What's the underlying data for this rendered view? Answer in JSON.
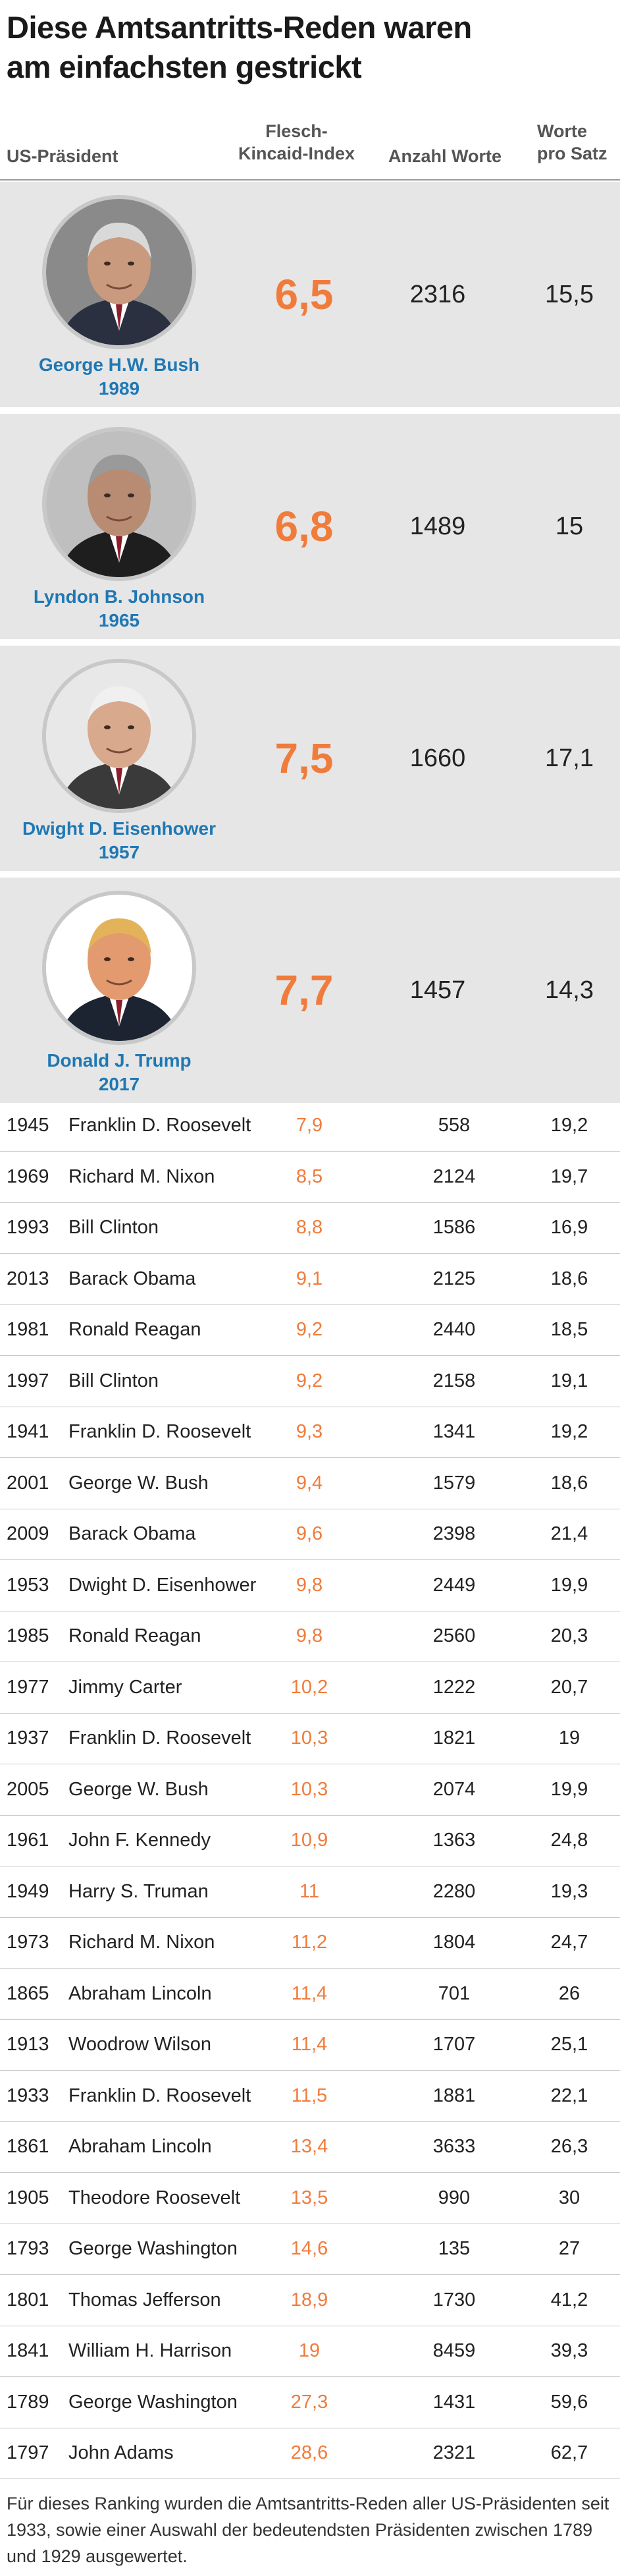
{
  "title_line1": "Diese Amtsantritts-Reden waren",
  "title_line2": "am einfachsten gestrickt",
  "headers": {
    "president": "US-Präsident",
    "fk_line1": "Flesch-",
    "fk_line2": "Kincaid-Index",
    "words": "Anzahl Worte",
    "wps_line1": "Worte",
    "wps_line2": "pro Satz"
  },
  "chart_data": {
    "type": "table",
    "columns": [
      "US-Präsident",
      "Flesch-Kincaid-Index",
      "Anzahl Worte",
      "Worte pro Satz"
    ],
    "featured": [
      {
        "name": "George H.W. Bush",
        "year": "1989",
        "fk": "6,5",
        "words": "2316",
        "wps": "15,5"
      },
      {
        "name": "Lyndon B. Johnson",
        "year": "1965",
        "fk": "6,8",
        "words": "1489",
        "wps": "15"
      },
      {
        "name": "Dwight D. Eisenhower",
        "year": "1957",
        "fk": "7,5",
        "words": "1660",
        "wps": "17,1"
      },
      {
        "name": "Donald J. Trump",
        "year": "2017",
        "fk": "7,7",
        "words": "1457",
        "wps": "14,3"
      }
    ],
    "rows": [
      {
        "year": "1945",
        "name": "Franklin D. Roosevelt",
        "fk": "7,9",
        "words": "558",
        "wps": "19,2"
      },
      {
        "year": "1969",
        "name": "Richard M. Nixon",
        "fk": "8,5",
        "words": "2124",
        "wps": "19,7"
      },
      {
        "year": "1993",
        "name": "Bill Clinton",
        "fk": "8,8",
        "words": "1586",
        "wps": "16,9"
      },
      {
        "year": "2013",
        "name": "Barack Obama",
        "fk": "9,1",
        "words": "2125",
        "wps": "18,6"
      },
      {
        "year": "1981",
        "name": "Ronald Reagan",
        "fk": "9,2",
        "words": "2440",
        "wps": "18,5"
      },
      {
        "year": "1997",
        "name": "Bill Clinton",
        "fk": "9,2",
        "words": "2158",
        "wps": "19,1"
      },
      {
        "year": "1941",
        "name": "Franklin D. Roosevelt",
        "fk": "9,3",
        "words": "1341",
        "wps": "19,2"
      },
      {
        "year": "2001",
        "name": "George W. Bush",
        "fk": "9,4",
        "words": "1579",
        "wps": "18,6"
      },
      {
        "year": "2009",
        "name": "Barack Obama",
        "fk": "9,6",
        "words": "2398",
        "wps": "21,4"
      },
      {
        "year": "1953",
        "name": "Dwight D. Eisenhower",
        "fk": "9,8",
        "words": "2449",
        "wps": "19,9"
      },
      {
        "year": "1985",
        "name": "Ronald Reagan",
        "fk": "9,8",
        "words": "2560",
        "wps": "20,3"
      },
      {
        "year": "1977",
        "name": "Jimmy Carter",
        "fk": "10,2",
        "words": "1222",
        "wps": "20,7"
      },
      {
        "year": "1937",
        "name": "Franklin D. Roosevelt",
        "fk": "10,3",
        "words": "1821",
        "wps": "19"
      },
      {
        "year": "2005",
        "name": "George W. Bush",
        "fk": "10,3",
        "words": "2074",
        "wps": "19,9"
      },
      {
        "year": "1961",
        "name": "John F. Kennedy",
        "fk": "10,9",
        "words": "1363",
        "wps": "24,8"
      },
      {
        "year": "1949",
        "name": "Harry S. Truman",
        "fk": "11",
        "words": "2280",
        "wps": "19,3"
      },
      {
        "year": "1973",
        "name": "Richard M. Nixon",
        "fk": "11,2",
        "words": "1804",
        "wps": "24,7"
      },
      {
        "year": "1865",
        "name": "Abraham Lincoln",
        "fk": "11,4",
        "words": "701",
        "wps": "26"
      },
      {
        "year": "1913",
        "name": "Woodrow Wilson",
        "fk": "11,4",
        "words": "1707",
        "wps": "25,1"
      },
      {
        "year": "1933",
        "name": "Franklin D. Roosevelt",
        "fk": "11,5",
        "words": "1881",
        "wps": "22,1"
      },
      {
        "year": "1861",
        "name": "Abraham Lincoln",
        "fk": "13,4",
        "words": "3633",
        "wps": "26,3"
      },
      {
        "year": "1905",
        "name": "Theodore Roosevelt",
        "fk": "13,5",
        "words": "990",
        "wps": "30"
      },
      {
        "year": "1793",
        "name": "George Washington",
        "fk": "14,6",
        "words": "135",
        "wps": "27"
      },
      {
        "year": "1801",
        "name": "Thomas Jefferson",
        "fk": "18,9",
        "words": "1730",
        "wps": "41,2"
      },
      {
        "year": "1841",
        "name": "William H. Harrison",
        "fk": "19",
        "words": "8459",
        "wps": "39,3"
      },
      {
        "year": "1789",
        "name": "George Washington",
        "fk": "27,3",
        "words": "1431",
        "wps": "59,6"
      },
      {
        "year": "1797",
        "name": "John Adams",
        "fk": "28,6",
        "words": "2321",
        "wps": "62,7"
      }
    ]
  },
  "colors": {
    "value_accent": "#f07c3c",
    "name_accent": "#1f78b4",
    "featured_bg": "#e6e6e6"
  },
  "footnote": "Für dieses Ranking wurden die Amtsantritts-Reden aller US-Präsidenten seit 1933, sowie einer Auswahl der bedeutendsten Präsidenten zwischen 1789 und 1929 ausgewertet."
}
